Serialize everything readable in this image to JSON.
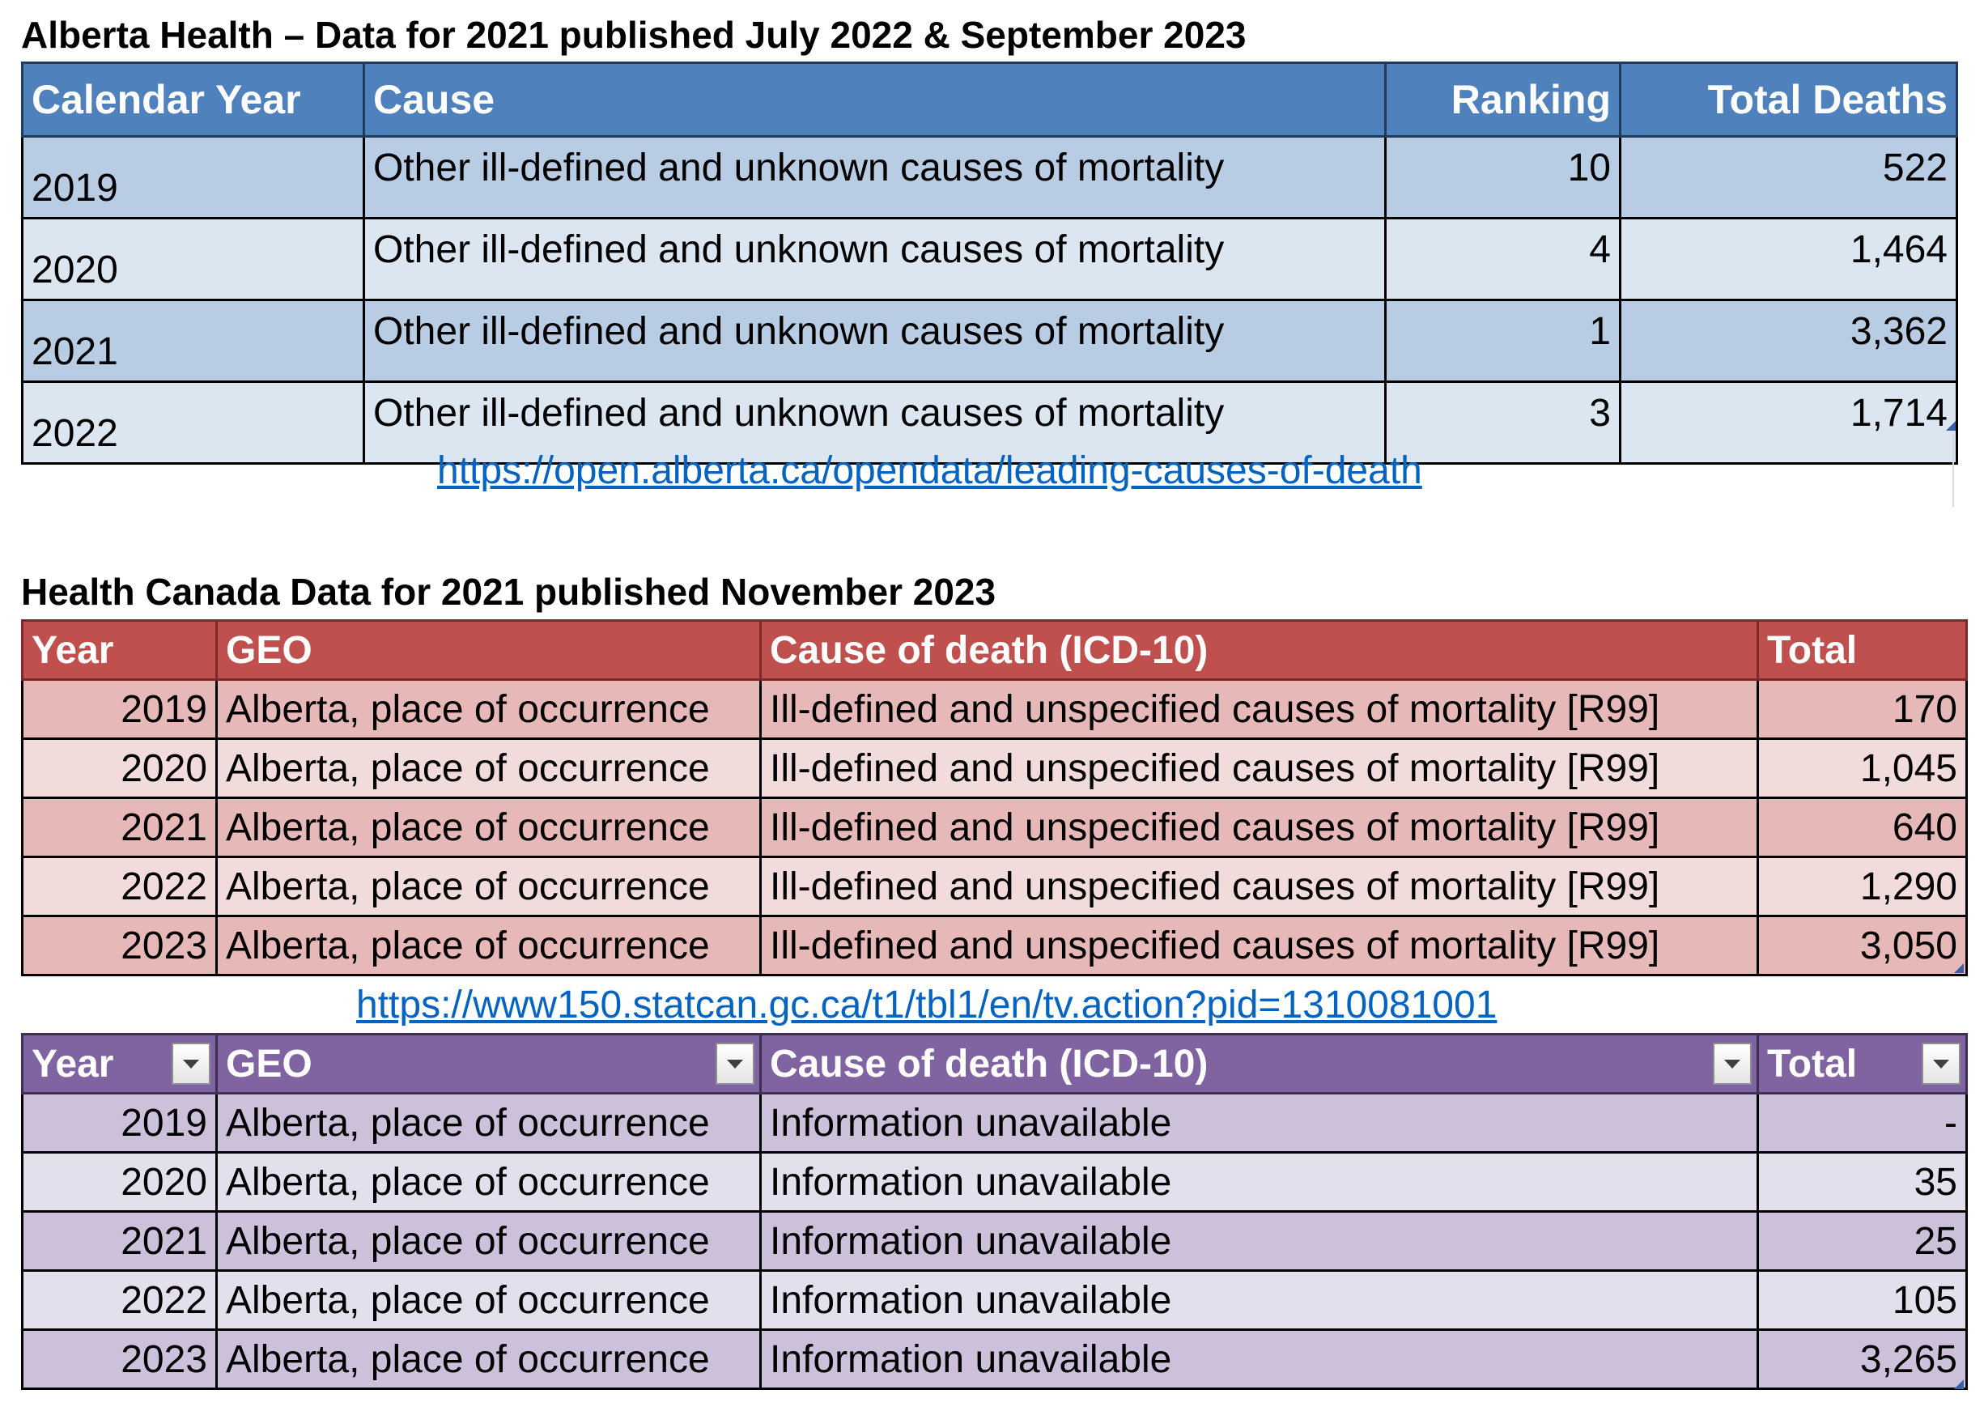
{
  "section1": {
    "heading": "Alberta Health – Data for 2021 published July 2022 & September 2023",
    "headers": {
      "year": "Calendar Year",
      "cause": "Cause",
      "ranking": "Ranking",
      "total": "Total Deaths"
    },
    "rows": [
      {
        "year": "2019",
        "cause": "Other ill-defined and unknown causes of mortality",
        "ranking": "10",
        "total": "522"
      },
      {
        "year": "2020",
        "cause": "Other ill-defined and unknown causes of mortality",
        "ranking": "4",
        "total": "1,464"
      },
      {
        "year": "2021",
        "cause": "Other ill-defined and unknown causes of mortality",
        "ranking": "1",
        "total": "3,362"
      },
      {
        "year": "2022",
        "cause": "Other ill-defined and unknown causes of mortality",
        "ranking": "3",
        "total": "1,714"
      }
    ],
    "link": "https://open.alberta.ca/opendata/leading-causes-of-death"
  },
  "section2": {
    "heading": "Health Canada Data for 2021 published November 2023",
    "headers": {
      "year": "Year",
      "geo": "GEO",
      "cause": "Cause of death (ICD-10)",
      "total": "Total"
    },
    "rows": [
      {
        "year": "2019",
        "geo": "Alberta, place of occurrence",
        "cause": "Ill-defined and unspecified causes of mortality [R99]",
        "total": "170"
      },
      {
        "year": "2020",
        "geo": "Alberta, place of occurrence",
        "cause": "Ill-defined and unspecified causes of mortality [R99]",
        "total": "1,045"
      },
      {
        "year": "2021",
        "geo": "Alberta, place of occurrence",
        "cause": "Ill-defined and unspecified causes of mortality [R99]",
        "total": "640"
      },
      {
        "year": "2022",
        "geo": "Alberta, place of occurrence",
        "cause": "Ill-defined and unspecified causes of mortality [R99]",
        "total": "1,290"
      },
      {
        "year": "2023",
        "geo": "Alberta, place of occurrence",
        "cause": "Ill-defined and unspecified causes of mortality [R99]",
        "total": "3,050"
      }
    ],
    "link": "https://www150.statcan.gc.ca/t1/tbl1/en/tv.action?pid=1310081001"
  },
  "section3": {
    "headers": {
      "year": "Year",
      "geo": "GEO",
      "cause": "Cause of death (ICD-10)",
      "total": "Total"
    },
    "rows": [
      {
        "year": "2019",
        "geo": "Alberta, place of occurrence",
        "cause": "Information unavailable",
        "total": "-"
      },
      {
        "year": "2020",
        "geo": "Alberta, place of occurrence",
        "cause": "Information unavailable",
        "total": "35"
      },
      {
        "year": "2021",
        "geo": "Alberta, place of occurrence",
        "cause": "Information unavailable",
        "total": "25"
      },
      {
        "year": "2022",
        "geo": "Alberta, place of occurrence",
        "cause": "Information unavailable",
        "total": "105"
      },
      {
        "year": "2023",
        "geo": "Alberta, place of occurrence",
        "cause": "Information unavailable",
        "total": "3,265"
      }
    ]
  },
  "icons": {
    "filter": "dropdown-filter-icon",
    "resize": "table-resize-handle-icon"
  },
  "colors": {
    "blue_header": "#4f81bd",
    "red_header": "#c0504d",
    "purple_header": "#8064a2",
    "link": "#0563c1"
  }
}
